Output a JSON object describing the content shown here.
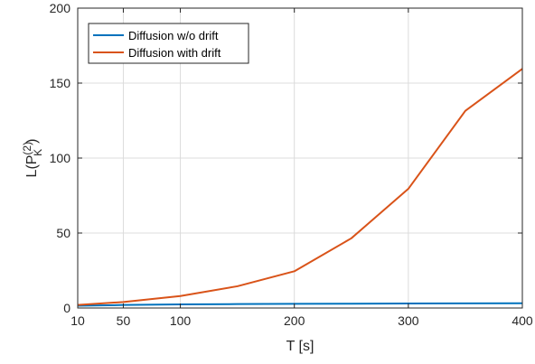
{
  "chart_data": {
    "type": "line",
    "title": "",
    "xlabel": "T [s]",
    "ylabel": {
      "base": "L(P",
      "sup": "(2)",
      "sub": "K",
      "close": ")"
    },
    "xlim": [
      10,
      400
    ],
    "ylim": [
      0,
      200
    ],
    "xticks": [
      10,
      50,
      100,
      200,
      300,
      400
    ],
    "yticks": [
      0,
      50,
      100,
      150,
      200
    ],
    "grid": true,
    "legend_position": "top-left",
    "x": [
      10,
      50,
      100,
      150,
      200,
      250,
      300,
      350,
      400
    ],
    "series": [
      {
        "name": "Diffusion w/o drift",
        "color": "#0072BD",
        "values": [
          1.5,
          2.0,
          2.4,
          2.6,
          2.8,
          2.9,
          3.0,
          3.1,
          3.2
        ]
      },
      {
        "name": "Diffusion with drift",
        "color": "#D95319",
        "values": [
          2.0,
          4.0,
          8.0,
          14.5,
          24.5,
          46.5,
          79.5,
          131.5,
          159.5
        ]
      }
    ]
  }
}
